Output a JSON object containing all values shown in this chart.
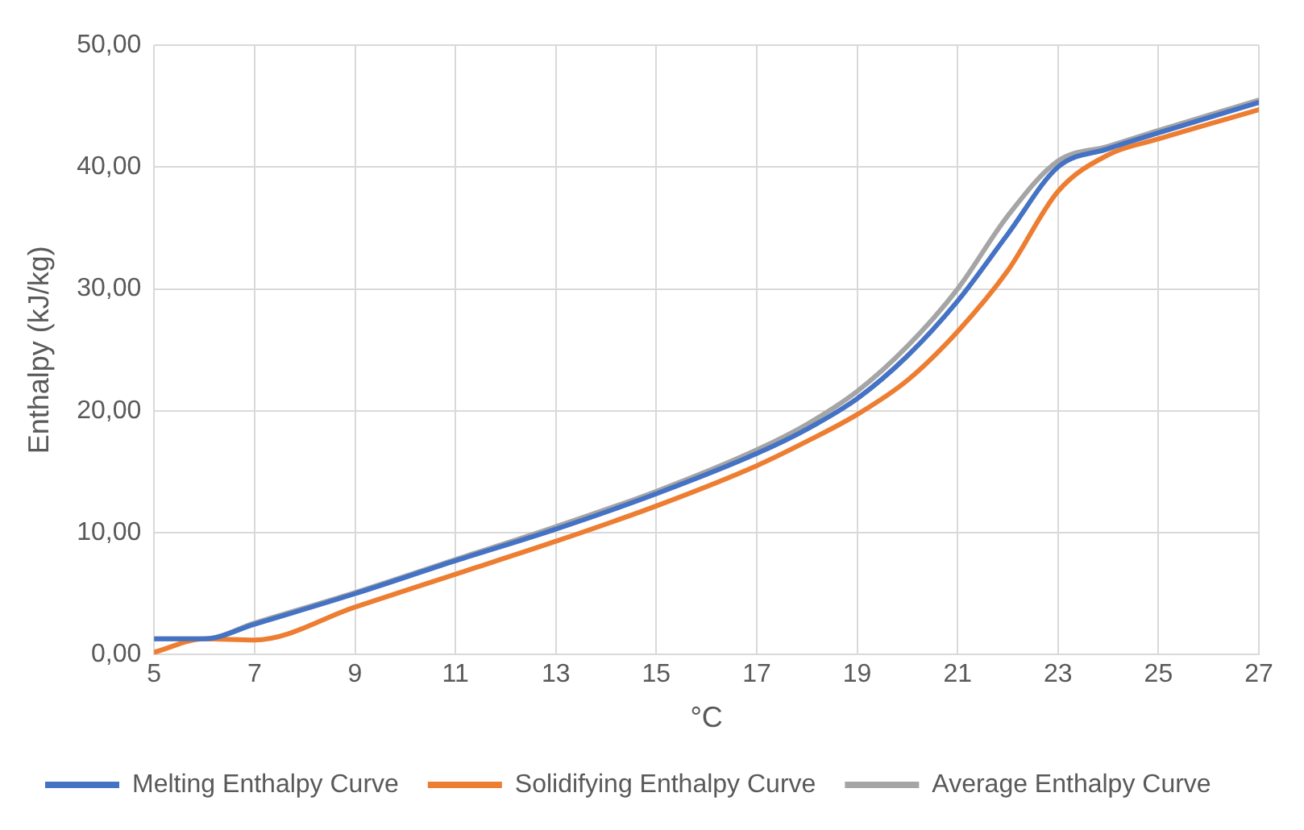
{
  "chart_data": {
    "type": "line",
    "xlabel": "°C",
    "ylabel": "Enthalpy (kJ/kg)",
    "x": [
      5,
      6,
      7,
      9,
      11,
      13,
      15,
      17,
      18,
      19,
      20,
      21,
      22,
      23,
      24,
      25,
      27
    ],
    "series": [
      {
        "name": "Melting Enthalpy Curve",
        "color": "#4472c4",
        "values": [
          1.3,
          1.3,
          2.5,
          5.0,
          7.7,
          10.3,
          13.2,
          16.5,
          18.5,
          21,
          24.5,
          29,
          34.5,
          40,
          41.5,
          42.8,
          45.3
        ]
      },
      {
        "name": "Solidifying Enthalpy Curve",
        "color": "#ed7d31",
        "values": [
          0.2,
          1.3,
          1.2,
          3.9,
          6.6,
          9.3,
          12.2,
          15.5,
          17.5,
          19.7,
          22.5,
          26.5,
          31.5,
          38,
          41,
          42.3,
          44.7
        ]
      },
      {
        "name": "Average Enthalpy Curve",
        "color": "#a5a5a5",
        "values": [
          1.3,
          1.3,
          2.6,
          5.1,
          7.8,
          10.5,
          13.4,
          16.8,
          18.9,
          21.6,
          25.3,
          30,
          36,
          40.5,
          41.7,
          43,
          45.5
        ]
      }
    ],
    "xlim": [
      5,
      27
    ],
    "xticks": [
      5,
      7,
      9,
      11,
      13,
      15,
      17,
      19,
      21,
      23,
      25,
      27
    ],
    "ylim": [
      0,
      50
    ],
    "yticks": [
      {
        "value": 0,
        "label": "0,00"
      },
      {
        "value": 10,
        "label": "10,00"
      },
      {
        "value": 20,
        "label": "20,00"
      },
      {
        "value": 30,
        "label": "30,00"
      },
      {
        "value": 40,
        "label": "40,00"
      },
      {
        "value": 50,
        "label": "50,00"
      }
    ],
    "grid": true,
    "legend": "bottom",
    "marker": "none",
    "line_style": "solid"
  }
}
